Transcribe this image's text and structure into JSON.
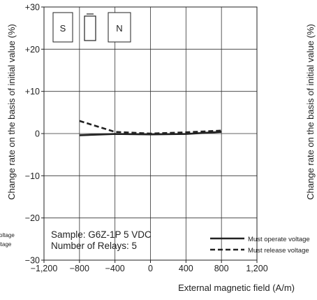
{
  "chart_data": {
    "type": "line",
    "xlabel": "External magnetic field (A/m)",
    "ylabel": "Change rate on the basis of initial value (%)",
    "right_ylabel": "Change rate on the basis of initial value (%)",
    "xlim": [
      -1200,
      1200
    ],
    "ylim": [
      -30,
      30
    ],
    "xticks": [
      -1200,
      -800,
      -400,
      0,
      400,
      800,
      1200
    ],
    "xtick_labels": [
      "−1,200",
      "−800",
      "−400",
      "0",
      "400",
      "800",
      "1,200"
    ],
    "yticks": [
      30,
      20,
      10,
      0,
      -10,
      -20,
      -30
    ],
    "ytick_labels": [
      "+30",
      "+20",
      "+10",
      "0",
      "−10",
      "−20",
      "−30"
    ],
    "grid": true,
    "legend_position": "bottom-right",
    "series": [
      {
        "name": "Must operate voltage",
        "style": "solid",
        "color": "#222222",
        "x": [
          -800,
          -400,
          0,
          400,
          800
        ],
        "y": [
          -0.4,
          -0.1,
          -0.2,
          -0.1,
          0.4
        ]
      },
      {
        "name": "Must release voltage",
        "style": "dashed",
        "color": "#222222",
        "x": [
          -800,
          -400,
          0,
          400,
          800
        ],
        "y": [
          3.0,
          0.4,
          0.0,
          0.3,
          0.7
        ]
      }
    ],
    "annotations": {
      "sample": "Sample: G6Z-1P  5 VDC",
      "relays": "Number of Relays: 5",
      "pole_s": "S",
      "pole_n": "N"
    },
    "left_fragments": [
      "oltage",
      "ltage"
    ]
  }
}
